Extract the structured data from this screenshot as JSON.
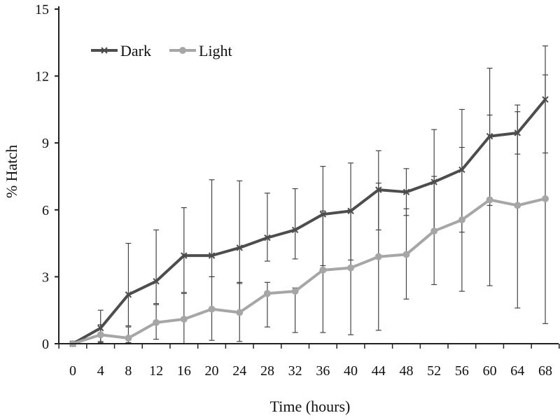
{
  "chart_data": {
    "type": "line",
    "title": "",
    "xlabel": "Time (hours)",
    "ylabel": "% Hatch",
    "x": [
      0,
      4,
      8,
      12,
      16,
      20,
      24,
      28,
      32,
      36,
      40,
      44,
      48,
      52,
      56,
      60,
      64,
      68
    ],
    "xlim": [
      0,
      68
    ],
    "ylim": [
      0,
      15
    ],
    "yticks": [
      0,
      3,
      6,
      9,
      12,
      15
    ],
    "grid": false,
    "legend_position": "top-left",
    "series": [
      {
        "name": "Dark",
        "color": "#4d4d4d",
        "marker": "x",
        "values": [
          0,
          0.7,
          2.2,
          2.8,
          3.95,
          3.95,
          4.3,
          4.75,
          5.1,
          5.8,
          5.95,
          6.9,
          6.8,
          7.25,
          7.8,
          9.3,
          9.45,
          10.95
        ],
        "err_upper": [
          0,
          1.5,
          4.5,
          5.1,
          6.1,
          7.35,
          7.3,
          6.75,
          6.95,
          7.95,
          8.1,
          8.65,
          7.85,
          9.6,
          10.5,
          12.35,
          10.7,
          13.35
        ],
        "err_lower": [
          0,
          0.1,
          0.8,
          1.8,
          2.3,
          3.0,
          2.7,
          3.7,
          3.8,
          3.5,
          3.75,
          5.1,
          5.75,
          5.0,
          5.0,
          6.2,
          8.5,
          8.55
        ]
      },
      {
        "name": "Light",
        "color": "#a6a6a6",
        "marker": "circle",
        "values": [
          0,
          0.4,
          0.25,
          0.95,
          1.1,
          1.55,
          1.4,
          2.25,
          2.35,
          3.3,
          3.4,
          3.9,
          4.0,
          5.05,
          5.55,
          6.45,
          6.2,
          6.5
        ],
        "err_upper": [
          0,
          0.85,
          0.75,
          1.75,
          2.25,
          3.0,
          2.75,
          2.75,
          2.5,
          5.95,
          6.0,
          7.2,
          6.05,
          7.5,
          8.8,
          10.25,
          10.4,
          12.05
        ],
        "err_lower": [
          0,
          0.05,
          0.05,
          0.2,
          0.0,
          0.15,
          0.1,
          0.75,
          0.5,
          0.5,
          0.4,
          0.6,
          2.0,
          2.65,
          2.35,
          2.6,
          1.6,
          0.9
        ]
      }
    ]
  }
}
